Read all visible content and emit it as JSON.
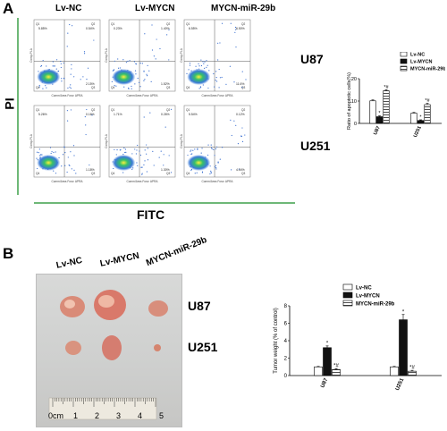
{
  "panels": {
    "a": {
      "letter": "A",
      "columns": [
        "Lv-NC",
        "Lv-MYCN",
        "MYCN-miR-29b"
      ],
      "rows": [
        "U87",
        "U251"
      ],
      "y_axis_title": "PI",
      "x_axis_title": "FITC",
      "quadrant_labels": [
        "Q1",
        "Q2",
        "Q3",
        "Q4"
      ],
      "flow_percentages": [
        [
          [
            "5.85%",
            "0.54%",
            "2.15%"
          ],
          [
            "0.23%",
            "1.40%",
            "1.52%"
          ],
          [
            "6.55%",
            "6.50%",
            "11.6%"
          ]
        ],
        [
          [
            "5.26%",
            "0.16%",
            "1.18%"
          ],
          [
            "1.71%",
            "0.26%",
            "1.30%"
          ],
          [
            "5.54%",
            "0.12%",
            "4.04%"
          ]
        ]
      ],
      "flow_axis_x": "Comm/Area Forw. APRA",
      "flow_axis_y": "Comp-PI-A",
      "colors": {
        "green_line": "#3fa14a",
        "dense": "#1aa06a"
      }
    },
    "b": {
      "letter": "B",
      "columns": [
        "Lv-NC",
        "Lv-MYCN",
        "MYCN-miR-29b"
      ],
      "rows": [
        "U87",
        "U251"
      ],
      "ruler_labels": [
        "0cm",
        "1",
        "2",
        "3",
        "4",
        "5"
      ]
    }
  },
  "chart_data": [
    {
      "type": "bar",
      "ylabel": "Ratio of apoptotic cells(%)",
      "categories": [
        "U87",
        "U251"
      ],
      "series": [
        {
          "name": "Lv-NC",
          "values": [
            10.1,
            4.6
          ],
          "errors": [
            0.4,
            0.3
          ],
          "pattern": "white",
          "annot": [
            "",
            ""
          ]
        },
        {
          "name": "Lv-MYCN",
          "values": [
            3.0,
            1.3
          ],
          "errors": [
            0.4,
            0.3
          ],
          "pattern": "black",
          "annot": [
            "*",
            "*"
          ]
        },
        {
          "name": "MYCN-miR-29b",
          "values": [
            14.6,
            8.4
          ],
          "errors": [
            0.5,
            0.6
          ],
          "pattern": "hatch",
          "annot": [
            "*#",
            "*#"
          ]
        }
      ],
      "ylim": [
        0,
        20
      ],
      "yticks": [
        "0",
        "10",
        "20"
      ]
    },
    {
      "type": "bar",
      "ylabel": "Tumor weight (% of control)",
      "categories": [
        "U87",
        "U251"
      ],
      "series": [
        {
          "name": "Lv-NC",
          "values": [
            1.0,
            1.0
          ],
          "errors": [
            0.05,
            0.05
          ],
          "pattern": "white",
          "annot": [
            "",
            ""
          ]
        },
        {
          "name": "Lv-MYCN",
          "values": [
            3.2,
            6.4
          ],
          "errors": [
            0.2,
            0.6
          ],
          "pattern": "black",
          "annot": [
            "*",
            "*"
          ]
        },
        {
          "name": "MYCN-miR-29b",
          "values": [
            0.7,
            0.5
          ],
          "errors": [
            0.1,
            0.1
          ],
          "pattern": "hatch",
          "annot": [
            "*#",
            "*#"
          ]
        }
      ],
      "ylim": [
        0,
        8
      ],
      "yticks": [
        "0",
        "2",
        "4",
        "6",
        "8"
      ]
    }
  ]
}
